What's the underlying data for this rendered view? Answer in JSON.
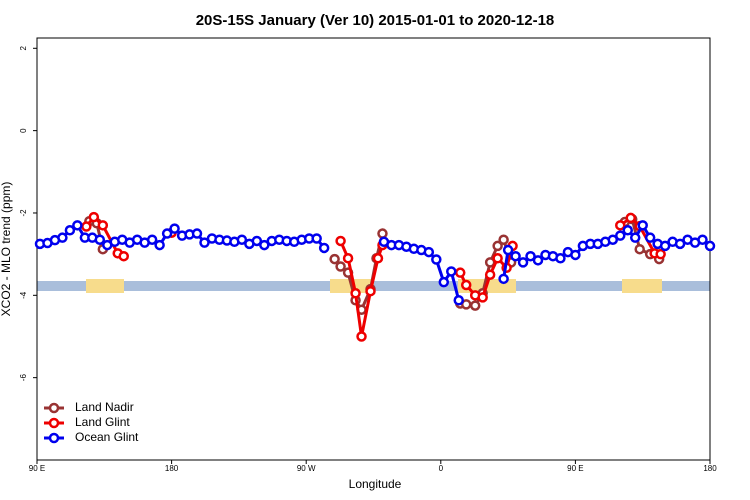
{
  "chart_data": {
    "type": "line",
    "title": "20S-15S January (Ver 10)   2015-01-01 to 2020-12-18",
    "xlabel": "Longitude",
    "ylabel": "XCO2 - MLO trend (ppm)",
    "xlim": [
      90,
      540
    ],
    "ylim": [
      -8,
      2.25
    ],
    "xticks": [
      {
        "value": 90,
        "label": "90 E"
      },
      180,
      {
        "value": 270,
        "label": "90 W"
      },
      {
        "value": 360,
        "label": "0"
      },
      {
        "value": 450,
        "label": "90 E"
      },
      {
        "value": 540,
        "label": "180"
      }
    ],
    "yticks": [
      2,
      0,
      -2,
      -4,
      -6
    ],
    "legend": "bottomleft",
    "series": [
      {
        "name": "Land Nadir",
        "color": "#993333",
        "x": [
          125,
          130,
          134,
          280,
          289,
          293,
          298,
          303,
          307,
          313,
          317,
          321,
          370,
          373,
          377,
          383,
          388,
          393,
          398,
          402,
          407,
          450,
          483,
          488,
          493,
          500,
          506
        ],
        "values": [
          -2.2,
          -2.25,
          -2.88,
          null,
          -3.12,
          -3.3,
          -3.45,
          -4.12,
          -4.35,
          -3.85,
          -3.1,
          -2.5,
          null,
          -4.2,
          -4.22,
          -4.25,
          -3.95,
          -3.2,
          -2.8,
          -2.65,
          -3.2,
          null,
          -2.22,
          -2.15,
          -2.88,
          -3.0,
          -3.12
        ]
      },
      {
        "name": "Land Glint",
        "color": "#ee0000",
        "x": [
          123,
          128,
          134,
          144,
          148,
          160,
          180,
          250,
          293,
          298,
          303,
          307,
          313,
          318,
          321,
          350,
          373,
          377,
          383,
          388,
          393,
          398,
          404,
          408,
          450,
          480,
          487,
          493,
          503,
          507
        ],
        "values": [
          -2.33,
          -2.1,
          -2.3,
          -2.98,
          -3.05,
          null,
          -2.48,
          null,
          -2.68,
          -3.1,
          -3.95,
          -5.0,
          -3.9,
          -3.1,
          -2.78,
          null,
          -3.45,
          -3.75,
          -4.0,
          -4.05,
          -3.5,
          -3.1,
          -3.33,
          -2.8,
          null,
          -2.3,
          -2.12,
          -2.32,
          -2.98,
          -3.0
        ]
      },
      {
        "name": "Ocean Glint",
        "color": "#0000ee",
        "x": [
          92,
          97,
          102,
          107,
          112,
          117,
          122,
          127,
          132,
          137,
          142,
          147,
          152,
          157,
          162,
          167,
          172,
          177,
          182,
          187,
          192,
          197,
          202,
          207,
          212,
          217,
          222,
          227,
          232,
          237,
          242,
          247,
          252,
          257,
          262,
          267,
          272,
          277,
          282,
          300,
          322,
          327,
          332,
          337,
          342,
          347,
          352,
          357,
          362,
          367,
          372,
          390,
          402,
          405,
          410,
          415,
          420,
          425,
          430,
          435,
          440,
          445,
          450,
          455,
          460,
          465,
          470,
          475,
          480,
          485,
          490,
          495,
          500,
          505,
          510,
          515,
          520,
          525,
          530,
          535,
          540
        ],
        "values": [
          -2.75,
          -2.73,
          -2.66,
          -2.6,
          -2.42,
          -2.3,
          -2.6,
          -2.6,
          -2.65,
          -2.78,
          -2.7,
          -2.65,
          -2.72,
          -2.65,
          -2.72,
          -2.65,
          -2.78,
          -2.5,
          -2.38,
          -2.55,
          -2.52,
          -2.5,
          -2.72,
          -2.62,
          -2.65,
          -2.67,
          -2.7,
          -2.65,
          -2.75,
          -2.68,
          -2.78,
          -2.68,
          -2.65,
          -2.68,
          -2.7,
          -2.65,
          -2.62,
          -2.62,
          -2.85,
          null,
          -2.7,
          -2.78,
          -2.78,
          -2.82,
          -2.87,
          -2.9,
          -2.95,
          -3.13,
          -3.68,
          -3.42,
          -4.12,
          null,
          -3.6,
          -2.9,
          -3.05,
          -3.2,
          -3.05,
          -3.15,
          -3.02,
          -3.05,
          -3.1,
          -2.95,
          -3.02,
          -2.8,
          -2.75,
          -2.75,
          -2.7,
          -2.65,
          -2.55,
          -2.42,
          -2.6,
          -2.3,
          -2.6,
          -2.75,
          -2.8,
          -2.7,
          -2.75,
          -2.65,
          -2.72,
          -2.65,
          -2.8
        ]
      }
    ]
  }
}
